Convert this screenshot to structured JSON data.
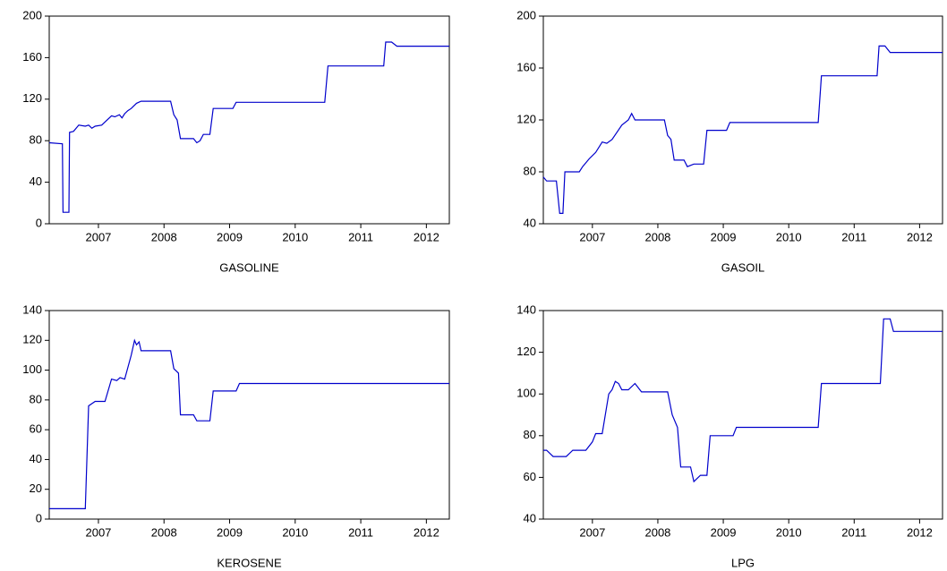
{
  "chart_data": [
    {
      "type": "line",
      "title": "GASOLINE",
      "color": "#0000cc",
      "x": [
        2006.75,
        2006.95,
        2006.96,
        2007.05,
        2007.06,
        2007.12,
        2007.2,
        2007.3,
        2007.35,
        2007.4,
        2007.45,
        2007.55,
        2007.6,
        2007.7,
        2007.75,
        2007.82,
        2007.86,
        2007.9,
        2007.95,
        2008.0,
        2008.08,
        2008.15,
        2008.6,
        2008.65,
        2008.7,
        2008.75,
        2008.95,
        2009.0,
        2009.05,
        2009.1,
        2009.2,
        2009.25,
        2009.55,
        2009.6,
        2010.95,
        2011.0,
        2011.85,
        2011.88,
        2011.97,
        2012.05,
        2012.85
      ],
      "values": [
        78,
        77,
        11,
        11,
        88,
        89,
        95,
        94,
        95,
        92,
        94,
        95,
        98,
        104,
        103,
        105,
        102,
        106,
        109,
        111,
        116,
        118,
        118,
        105,
        100,
        82,
        82,
        78,
        80,
        86,
        86,
        111,
        111,
        117,
        117,
        152,
        152,
        175,
        175,
        171,
        171
      ],
      "xlim": [
        2006.75,
        2012.85
      ],
      "ylim": [
        0,
        200
      ],
      "yticks": [
        0,
        40,
        80,
        120,
        160,
        200
      ],
      "xticks": [
        {
          "value": 2007.5,
          "label": "2007"
        },
        {
          "value": 2008.5,
          "label": "2008"
        },
        {
          "value": 2009.5,
          "label": "2009"
        },
        {
          "value": 2010.5,
          "label": "2010"
        },
        {
          "value": 2011.5,
          "label": "2011"
        },
        {
          "value": 2012.5,
          "label": "2012"
        }
      ]
    },
    {
      "type": "line",
      "title": "GASOIL",
      "color": "#0000cc",
      "x": [
        2006.75,
        2006.8,
        2006.95,
        2007.0,
        2007.05,
        2007.08,
        2007.3,
        2007.35,
        2007.45,
        2007.55,
        2007.65,
        2007.72,
        2007.8,
        2007.95,
        2008.05,
        2008.1,
        2008.15,
        2008.6,
        2008.65,
        2008.7,
        2008.75,
        2008.9,
        2008.95,
        2009.05,
        2009.2,
        2009.25,
        2009.55,
        2009.6,
        2010.95,
        2011.0,
        2011.85,
        2011.88,
        2011.97,
        2012.05,
        2012.85
      ],
      "values": [
        76,
        73,
        73,
        48,
        48,
        80,
        80,
        84,
        90,
        95,
        103,
        102,
        105,
        116,
        120,
        125,
        120,
        120,
        108,
        105,
        89,
        89,
        84,
        86,
        86,
        112,
        112,
        118,
        118,
        154,
        154,
        177,
        177,
        172,
        172
      ],
      "xlim": [
        2006.75,
        2012.85
      ],
      "ylim": [
        40,
        200
      ],
      "yticks": [
        40,
        80,
        120,
        160,
        200
      ],
      "xticks": [
        {
          "value": 2007.5,
          "label": "2007"
        },
        {
          "value": 2008.5,
          "label": "2008"
        },
        {
          "value": 2009.5,
          "label": "2009"
        },
        {
          "value": 2010.5,
          "label": "2010"
        },
        {
          "value": 2011.5,
          "label": "2011"
        },
        {
          "value": 2012.5,
          "label": "2012"
        }
      ]
    },
    {
      "type": "line",
      "title": "KEROSENE",
      "color": "#0000cc",
      "x": [
        2006.75,
        2007.3,
        2007.35,
        2007.45,
        2007.6,
        2007.7,
        2007.78,
        2007.83,
        2007.9,
        2008.0,
        2008.05,
        2008.08,
        2008.12,
        2008.15,
        2008.6,
        2008.65,
        2008.72,
        2008.75,
        2008.95,
        2009.0,
        2009.2,
        2009.25,
        2009.6,
        2009.65,
        2012.85
      ],
      "values": [
        7,
        7,
        76,
        79,
        79,
        94,
        93,
        95,
        94,
        110,
        120,
        117,
        119,
        113,
        113,
        101,
        98,
        70,
        70,
        66,
        66,
        86,
        86,
        91,
        91
      ],
      "xlim": [
        2006.75,
        2012.85
      ],
      "ylim": [
        0,
        140
      ],
      "yticks": [
        0,
        20,
        40,
        60,
        80,
        100,
        120,
        140
      ],
      "xticks": [
        {
          "value": 2007.5,
          "label": "2007"
        },
        {
          "value": 2008.5,
          "label": "2008"
        },
        {
          "value": 2009.5,
          "label": "2009"
        },
        {
          "value": 2010.5,
          "label": "2010"
        },
        {
          "value": 2011.5,
          "label": "2011"
        },
        {
          "value": 2012.5,
          "label": "2012"
        }
      ]
    },
    {
      "type": "line",
      "title": "LPG",
      "color": "#0000cc",
      "x": [
        2006.75,
        2006.8,
        2006.9,
        2007.1,
        2007.2,
        2007.4,
        2007.5,
        2007.55,
        2007.65,
        2007.75,
        2007.8,
        2007.85,
        2007.9,
        2007.95,
        2008.05,
        2008.15,
        2008.25,
        2008.65,
        2008.72,
        2008.8,
        2008.85,
        2009.0,
        2009.05,
        2009.15,
        2009.25,
        2009.3,
        2009.65,
        2009.7,
        2010.95,
        2011.0,
        2011.9,
        2011.95,
        2012.05,
        2012.1,
        2012.85
      ],
      "values": [
        73,
        73,
        70,
        70,
        73,
        73,
        77,
        81,
        81,
        100,
        102,
        106,
        105,
        102,
        102,
        105,
        101,
        101,
        90,
        84,
        65,
        65,
        58,
        61,
        61,
        80,
        80,
        84,
        84,
        105,
        105,
        136,
        136,
        130,
        130
      ],
      "xlim": [
        2006.75,
        2012.85
      ],
      "ylim": [
        40,
        140
      ],
      "yticks": [
        40,
        60,
        80,
        100,
        120,
        140
      ],
      "xticks": [
        {
          "value": 2007.5,
          "label": "2007"
        },
        {
          "value": 2008.5,
          "label": "2008"
        },
        {
          "value": 2009.5,
          "label": "2009"
        },
        {
          "value": 2010.5,
          "label": "2010"
        },
        {
          "value": 2011.5,
          "label": "2011"
        },
        {
          "value": 2012.5,
          "label": "2012"
        }
      ]
    }
  ]
}
